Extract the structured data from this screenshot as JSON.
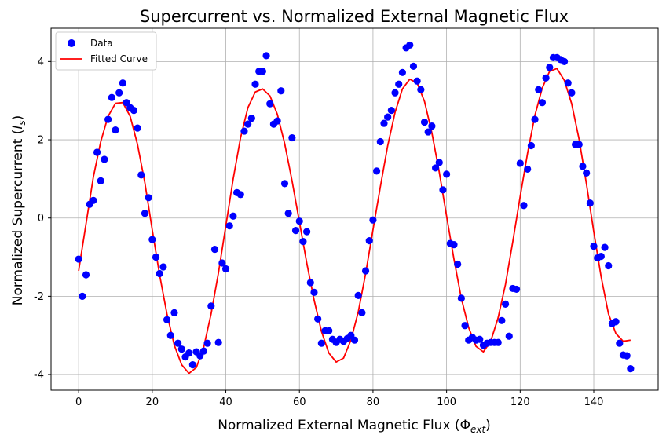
{
  "chart_data": {
    "type": "scatter",
    "title": "Supercurrent vs. Normalized External Magnetic Flux",
    "xlabel": "Normalized External Magnetic Flux (Φext)",
    "ylabel": "Normalized Supercurrent (Is)",
    "xlim": [
      -7.5,
      157.5
    ],
    "ylim": [
      -4.4,
      4.85
    ],
    "xticks": [
      0,
      20,
      40,
      60,
      80,
      100,
      120,
      140
    ],
    "yticks": [
      -4,
      -2,
      0,
      2,
      4
    ],
    "xtick_labels": [
      "0",
      "20",
      "40",
      "60",
      "80",
      "100",
      "120",
      "140"
    ],
    "ytick_labels": [
      "-4",
      "-2",
      "0",
      "2",
      "4"
    ],
    "grid": true,
    "legend_position": "top-left",
    "series": [
      {
        "name": "Data",
        "kind": "scatter",
        "color": "#0000ff",
        "x": [
          0,
          1,
          2,
          3,
          4,
          5,
          6,
          7,
          8,
          9,
          10,
          11,
          12,
          13,
          14,
          15,
          16,
          17,
          18,
          19,
          20,
          21,
          22,
          23,
          24,
          25,
          26,
          27,
          28,
          29,
          30,
          31,
          32,
          33,
          34,
          35,
          36,
          37,
          38,
          39,
          40,
          41,
          42,
          43,
          44,
          45,
          46,
          47,
          48,
          49,
          50,
          51,
          52,
          53,
          54,
          55,
          56,
          57,
          58,
          59,
          60,
          61,
          62,
          63,
          64,
          65,
          66,
          67,
          68,
          69,
          70,
          71,
          72,
          73,
          74,
          75,
          76,
          77,
          78,
          79,
          80,
          81,
          82,
          83,
          84,
          85,
          86,
          87,
          88,
          89,
          90,
          91,
          92,
          93,
          94,
          95,
          96,
          97,
          98,
          99,
          100,
          101,
          102,
          103,
          104,
          105,
          106,
          107,
          108,
          109,
          110,
          111,
          112,
          113,
          114,
          115,
          116,
          117,
          118,
          119,
          120,
          121,
          122,
          123,
          124,
          125,
          126,
          127,
          128,
          129,
          130,
          131,
          132,
          133,
          134,
          135,
          136,
          137,
          138,
          139,
          140,
          141,
          142,
          143,
          144,
          145,
          146,
          147,
          148,
          149,
          150
        ],
        "y": [
          -1.05,
          -2.0,
          -1.45,
          0.35,
          0.45,
          1.68,
          0.95,
          1.5,
          2.52,
          3.08,
          2.25,
          3.2,
          3.45,
          2.95,
          2.82,
          2.75,
          2.3,
          1.1,
          0.12,
          0.52,
          -0.55,
          -1.0,
          -1.42,
          -1.25,
          -2.6,
          -3.0,
          -2.42,
          -3.2,
          -3.35,
          -3.55,
          -3.45,
          -3.75,
          -3.42,
          -3.52,
          -3.4,
          -3.2,
          -2.25,
          -0.8,
          -3.18,
          -1.15,
          -1.3,
          -0.2,
          0.05,
          0.65,
          0.6,
          2.22,
          2.4,
          2.55,
          3.42,
          3.75,
          3.75,
          4.15,
          2.92,
          2.4,
          2.48,
          3.25,
          0.88,
          0.12,
          2.05,
          -0.32,
          -0.08,
          -0.6,
          -0.35,
          -1.65,
          -1.9,
          -2.58,
          -3.2,
          -2.88,
          -2.88,
          -3.1,
          -3.18,
          -3.1,
          -3.15,
          -3.08,
          -3.0,
          -3.12,
          -1.98,
          -2.42,
          -1.35,
          -0.58,
          -0.05,
          1.2,
          1.95,
          2.42,
          2.58,
          2.75,
          3.2,
          3.42,
          3.72,
          4.35,
          4.42,
          3.88,
          3.5,
          3.28,
          2.45,
          2.2,
          2.35,
          1.28,
          1.42,
          0.72,
          1.12,
          -0.65,
          -0.68,
          -1.18,
          -2.05,
          -2.75,
          -3.12,
          -3.05,
          -3.12,
          -3.1,
          -3.25,
          -3.2,
          -3.18,
          -3.18,
          -3.18,
          -2.62,
          -2.2,
          -3.02,
          -1.8,
          -1.82,
          1.4,
          0.32,
          1.25,
          1.85,
          2.52,
          3.28,
          2.95,
          3.58,
          3.85,
          4.1,
          4.1,
          4.05,
          4.0,
          3.45,
          3.2,
          1.88,
          1.88,
          1.32,
          1.15,
          0.38,
          -0.72,
          -1.02,
          -0.98,
          -0.75,
          -1.22,
          -2.7,
          -2.65,
          -3.2,
          -3.5,
          -3.52,
          -3.85
        ]
      },
      {
        "name": "Fitted Curve",
        "kind": "line",
        "color": "#ff0000",
        "x": [
          0,
          2,
          4,
          6,
          8,
          10,
          12,
          14,
          16,
          18,
          20,
          22,
          24,
          26,
          28,
          30,
          32,
          34,
          36,
          38,
          40,
          42,
          44,
          46,
          48,
          50,
          52,
          54,
          56,
          58,
          60,
          62,
          64,
          66,
          68,
          70,
          72,
          74,
          76,
          78,
          80,
          82,
          84,
          86,
          88,
          90,
          92,
          94,
          96,
          98,
          100,
          102,
          104,
          106,
          108,
          110,
          112,
          114,
          116,
          118,
          120,
          122,
          124,
          126,
          128,
          130,
          132,
          134,
          136,
          138,
          140,
          142,
          144,
          146,
          148,
          150
        ],
        "y": [
          -1.35,
          -0.15,
          1.05,
          1.95,
          2.6,
          2.93,
          2.95,
          2.6,
          1.88,
          0.9,
          -0.3,
          -1.45,
          -2.45,
          -3.25,
          -3.75,
          -3.97,
          -3.82,
          -3.3,
          -2.45,
          -1.4,
          -0.2,
          1.0,
          2.05,
          2.82,
          3.22,
          3.3,
          3.12,
          2.65,
          1.9,
          0.95,
          -0.1,
          -1.15,
          -2.1,
          -2.9,
          -3.45,
          -3.68,
          -3.58,
          -3.12,
          -2.4,
          -1.42,
          -0.3,
          0.8,
          1.85,
          2.7,
          3.3,
          3.55,
          3.45,
          2.98,
          2.18,
          1.18,
          0.05,
          -1.05,
          -2.05,
          -2.8,
          -3.28,
          -3.42,
          -3.15,
          -2.55,
          -1.7,
          -0.6,
          0.55,
          1.65,
          2.62,
          3.32,
          3.75,
          3.82,
          3.52,
          2.92,
          2.02,
          0.88,
          -0.35,
          -1.5,
          -2.45,
          -2.95,
          -3.15,
          -3.12
        ]
      }
    ]
  }
}
